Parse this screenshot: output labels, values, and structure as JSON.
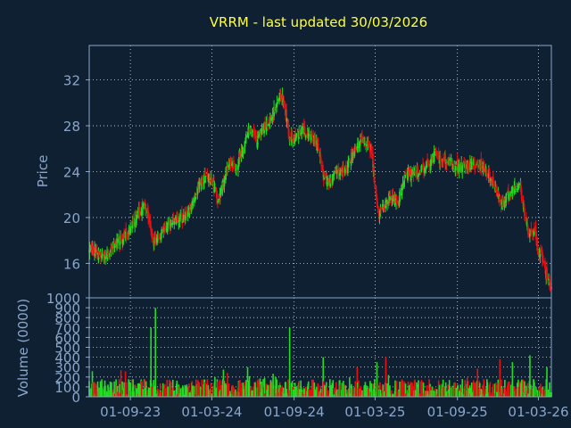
{
  "colors": {
    "background": "#0f2033",
    "axis": "#8aa6c8",
    "tick_text": "#8aa6c8",
    "title": "#ffff3c",
    "grid": "#cfd8e3",
    "up": "#22dd22",
    "down": "#e81010"
  },
  "chart_data": [
    {
      "type": "candlestick",
      "title": "VRRM - last updated 30/03/2026",
      "xlabel": "",
      "ylabel": "Price",
      "ylim": [
        13,
        35
      ],
      "yticks": [
        16,
        20,
        24,
        28,
        32
      ],
      "x_range": [
        "2023-06-01",
        "2026-03-30"
      ],
      "xticks": [
        "2023-09-01",
        "2024-03-01",
        "2024-09-01",
        "2025-03-01",
        "2025-09-01",
        "2026-03-01"
      ],
      "grid": true,
      "close_series": [
        [
          "2023-06-01",
          17.2
        ],
        [
          "2023-06-20",
          16.9
        ],
        [
          "2023-07-10",
          16.5
        ],
        [
          "2023-07-25",
          17.5
        ],
        [
          "2023-08-15",
          18.2
        ],
        [
          "2023-09-05",
          19.2
        ],
        [
          "2023-09-20",
          20.5
        ],
        [
          "2023-10-05",
          21.0
        ],
        [
          "2023-10-15",
          19.6
        ],
        [
          "2023-10-20",
          17.8
        ],
        [
          "2023-11-01",
          18.3
        ],
        [
          "2023-11-20",
          19.2
        ],
        [
          "2023-12-10",
          20.0
        ],
        [
          "2023-12-31",
          19.8
        ],
        [
          "2024-01-15",
          21.2
        ],
        [
          "2024-02-01",
          22.8
        ],
        [
          "2024-02-20",
          23.8
        ],
        [
          "2024-03-05",
          22.8
        ],
        [
          "2024-03-15",
          21.2
        ],
        [
          "2024-03-25",
          22.8
        ],
        [
          "2024-04-10",
          25.0
        ],
        [
          "2024-04-25",
          24.2
        ],
        [
          "2024-05-10",
          26.0
        ],
        [
          "2024-05-25",
          27.8
        ],
        [
          "2024-06-10",
          26.5
        ],
        [
          "2024-06-25",
          27.8
        ],
        [
          "2024-07-15",
          29.0
        ],
        [
          "2024-08-01",
          31.0
        ],
        [
          "2024-08-10",
          30.2
        ],
        [
          "2024-08-20",
          27.2
        ],
        [
          "2024-09-05",
          26.8
        ],
        [
          "2024-09-20",
          27.8
        ],
        [
          "2024-10-10",
          27.0
        ],
        [
          "2024-10-25",
          26.2
        ],
        [
          "2024-11-05",
          23.5
        ],
        [
          "2024-11-15",
          23.0
        ],
        [
          "2024-12-05",
          23.8
        ],
        [
          "2024-12-25",
          24.2
        ],
        [
          "2025-01-10",
          25.5
        ],
        [
          "2025-01-25",
          26.8
        ],
        [
          "2025-02-10",
          26.5
        ],
        [
          "2025-02-20",
          26.0
        ],
        [
          "2025-03-01",
          22.8
        ],
        [
          "2025-03-10",
          20.0
        ],
        [
          "2025-03-25",
          21.5
        ],
        [
          "2025-04-10",
          22.0
        ],
        [
          "2025-04-20",
          21.0
        ],
        [
          "2025-05-05",
          23.5
        ],
        [
          "2025-05-25",
          24.0
        ],
        [
          "2025-06-15",
          24.2
        ],
        [
          "2025-07-01",
          24.8
        ],
        [
          "2025-07-15",
          25.6
        ],
        [
          "2025-08-01",
          25.0
        ],
        [
          "2025-08-20",
          24.6
        ],
        [
          "2025-09-10",
          24.4
        ],
        [
          "2025-09-30",
          24.6
        ],
        [
          "2025-10-15",
          24.8
        ],
        [
          "2025-11-01",
          24.3
        ],
        [
          "2025-11-15",
          23.5
        ],
        [
          "2025-12-01",
          22.0
        ],
        [
          "2025-12-10",
          21.3
        ],
        [
          "2025-12-25",
          22.0
        ],
        [
          "2026-01-10",
          22.8
        ],
        [
          "2026-01-20",
          22.6
        ],
        [
          "2026-02-01",
          19.5
        ],
        [
          "2026-02-10",
          18.5
        ],
        [
          "2026-02-20",
          18.8
        ],
        [
          "2026-03-01",
          17.0
        ],
        [
          "2026-03-10",
          16.5
        ],
        [
          "2026-03-20",
          14.8
        ],
        [
          "2026-03-30",
          14.0
        ]
      ]
    },
    {
      "type": "bar",
      "title": "",
      "xlabel": "",
      "ylabel": "Volume (0000)",
      "ylim": [
        0,
        1000
      ],
      "yticks": [
        0,
        100,
        200,
        300,
        400,
        500,
        600,
        700,
        800,
        900,
        1000
      ],
      "x_range": [
        "2023-06-01",
        "2026-03-30"
      ],
      "xticks": [
        "2023-09-01",
        "2024-03-01",
        "2024-09-01",
        "2025-03-01",
        "2025-09-01",
        "2026-03-01"
      ],
      "xtick_labels": [
        "01-09-23",
        "01-03-24",
        "01-09-24",
        "01-03-25",
        "01-09-25",
        "01-03-26"
      ],
      "grid": true,
      "typical_volume": [
        60,
        180
      ],
      "spikes": [
        [
          "2023-10-17",
          700
        ],
        [
          "2023-10-27",
          900
        ],
        [
          "2024-01-20",
          400
        ],
        [
          "2024-05-20",
          300
        ],
        [
          "2024-08-22",
          700
        ],
        [
          "2024-09-15",
          350
        ],
        [
          "2024-11-05",
          400
        ],
        [
          "2025-01-20",
          300
        ],
        [
          "2025-03-05",
          350
        ],
        [
          "2025-03-25",
          400
        ],
        [
          "2025-04-20",
          380
        ],
        [
          "2025-07-20",
          330
        ],
        [
          "2025-11-01",
          320
        ],
        [
          "2025-12-05",
          380
        ],
        [
          "2026-01-02",
          350
        ],
        [
          "2026-02-10",
          420
        ],
        [
          "2026-03-01",
          600
        ],
        [
          "2026-03-20",
          300
        ]
      ]
    }
  ]
}
